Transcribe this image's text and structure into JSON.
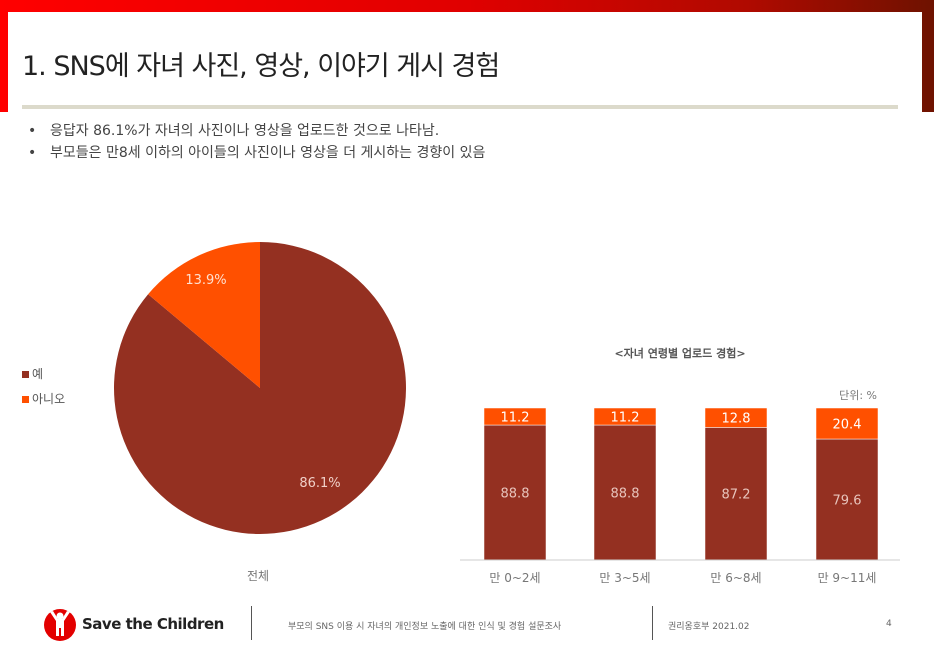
{
  "slide": {
    "title": "1. SNS에 자녀 사진, 영상, 이야기 게시 경험",
    "bullets": [
      "응답자 86.1%가 자녀의 사진이나 영상을 업로드한 것으로 나타남.",
      "부모들은 만8세 이하의 아이들의 사진이나 영상을 더 게시하는 경향이 있음"
    ]
  },
  "footer": {
    "logo_text": "Save the Children",
    "survey": "부모의 SNS 이용 시 자녀의 개인정보 노출에 대한 인식 및 경험 설문조사",
    "dept_date": "권리옹호부 2021.02",
    "page": "4"
  },
  "colors": {
    "yes": "#943021",
    "no": "#ff5000",
    "brand_red": "#ff0000"
  },
  "chart_data": [
    {
      "type": "pie",
      "category_label": "전체",
      "legend": [
        "예",
        "아니오"
      ],
      "legend_placement": "left",
      "slices": [
        {
          "name": "예",
          "value": 86.1,
          "label": "86.1%"
        },
        {
          "name": "아니오",
          "value": 13.9,
          "label": "13.9%"
        }
      ]
    },
    {
      "type": "bar",
      "stacked": true,
      "title": "<자녀 연령별 업로드 경험>",
      "unit": "단위: %",
      "categories": [
        "만 0~2세",
        "만 3~5세",
        "만 6~8세",
        "만 9~11세"
      ],
      "series": [
        {
          "name": "예",
          "values": [
            88.8,
            88.8,
            87.2,
            79.6
          ]
        },
        {
          "name": "아니오",
          "values": [
            11.2,
            11.2,
            12.8,
            20.4
          ]
        }
      ],
      "ylim": [
        0,
        100
      ]
    }
  ]
}
